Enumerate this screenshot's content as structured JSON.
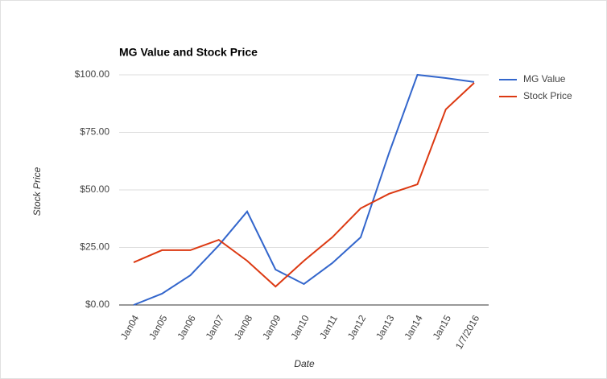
{
  "chart_data": {
    "type": "line",
    "title": "MG Value and Stock Price",
    "x_label": "Date",
    "y_label": "Stock Price",
    "categories": [
      "Jan04",
      "Jan05",
      "Jan06",
      "Jan07",
      "Jan08",
      "Jan09",
      "Jan10",
      "Jan11",
      "Jan12",
      "Jan13",
      "Jan14",
      "Jan15",
      "1/7/2016"
    ],
    "series": [
      {
        "name": "MG Value",
        "color": "#3366cc",
        "values": [
          0,
          4.9,
          12.9,
          25.9,
          40.6,
          15.4,
          9.1,
          18.2,
          29.4,
          66,
          100,
          98.6,
          96.9
        ]
      },
      {
        "name": "Stock Price",
        "color": "#dc3912",
        "values": [
          18.5,
          23.8,
          23.8,
          28.3,
          19.2,
          8,
          19.2,
          29.4,
          42,
          48.3,
          52.4,
          85,
          96.5
        ]
      }
    ],
    "ylim": [
      0,
      100
    ],
    "yticks": [
      {
        "value": 0,
        "label": "$0.00"
      },
      {
        "value": 25,
        "label": "$25.00"
      },
      {
        "value": 50,
        "label": "$50.00"
      },
      {
        "value": 75,
        "label": "$75.00"
      },
      {
        "value": 100,
        "label": "$100.00"
      }
    ],
    "grid": true,
    "legend": "right"
  }
}
